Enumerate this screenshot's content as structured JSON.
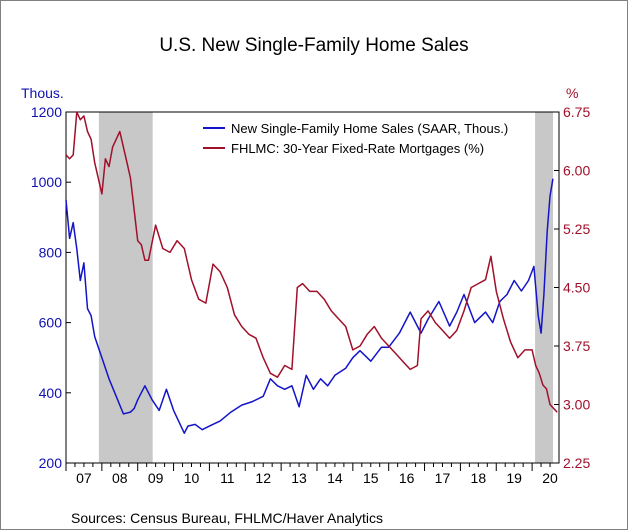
{
  "chart_data": {
    "type": "line",
    "title": "U.S. New Single-Family Home Sales",
    "source": "Sources:   Census Bureau, FHLMC/Haver Analytics",
    "left_axis": {
      "unit_label": "Thous.",
      "ticks": [
        200,
        400,
        600,
        800,
        1000,
        1200
      ],
      "tick_labels": [
        "200",
        "400",
        "600",
        "800",
        "1000",
        "1200"
      ],
      "range": [
        200,
        1200
      ],
      "color": "#1010b0"
    },
    "right_axis": {
      "unit_label": "%",
      "ticks": [
        2.25,
        3.0,
        3.75,
        4.5,
        5.25,
        6.0,
        6.75
      ],
      "tick_labels": [
        "2.25",
        "3.00",
        "3.75",
        "4.50",
        "5.25",
        "6.00",
        "6.75"
      ],
      "range": [
        2.25,
        6.75
      ],
      "color": "#a0102a"
    },
    "x_axis": {
      "tick_labels": [
        "07",
        "08",
        "09",
        "10",
        "11",
        "12",
        "13",
        "14",
        "15",
        "16",
        "17",
        "18",
        "19",
        "20"
      ],
      "range": [
        2007.0,
        2020.75
      ]
    },
    "recessions": [
      [
        2007.917,
        2009.417
      ],
      [
        2020.083,
        2020.583
      ]
    ],
    "grid": false,
    "legend_position": "top-right",
    "series": [
      {
        "name": "New Single-Family Home Sales (SAAR, Thous.)",
        "axis": "left",
        "color": "#1414c8",
        "x": [
          2007.0,
          2007.1,
          2007.2,
          2007.3,
          2007.4,
          2007.5,
          2007.6,
          2007.7,
          2007.8,
          2007.9,
          2008.0,
          2008.2,
          2008.4,
          2008.6,
          2008.8,
          2008.9,
          2009.0,
          2009.2,
          2009.4,
          2009.6,
          2009.8,
          2010.0,
          2010.3,
          2010.4,
          2010.6,
          2010.8,
          2011.0,
          2011.3,
          2011.6,
          2011.9,
          2012.2,
          2012.5,
          2012.7,
          2012.9,
          2013.1,
          2013.3,
          2013.5,
          2013.7,
          2013.9,
          2014.1,
          2014.3,
          2014.5,
          2014.8,
          2015.0,
          2015.2,
          2015.5,
          2015.8,
          2016.0,
          2016.3,
          2016.6,
          2016.9,
          2017.1,
          2017.4,
          2017.7,
          2017.9,
          2018.1,
          2018.4,
          2018.7,
          2018.9,
          2019.1,
          2019.3,
          2019.5,
          2019.7,
          2019.9,
          2020.05,
          2020.17,
          2020.25,
          2020.33,
          2020.42,
          2020.5,
          2020.58
        ],
        "values": [
          950,
          840,
          885,
          810,
          720,
          770,
          640,
          620,
          560,
          530,
          500,
          440,
          390,
          340,
          345,
          355,
          380,
          420,
          380,
          350,
          410,
          350,
          285,
          305,
          310,
          295,
          305,
          320,
          345,
          365,
          375,
          390,
          440,
          420,
          410,
          420,
          360,
          450,
          410,
          440,
          420,
          450,
          470,
          500,
          520,
          490,
          530,
          530,
          570,
          630,
          570,
          610,
          660,
          590,
          630,
          680,
          600,
          630,
          600,
          660,
          680,
          720,
          690,
          720,
          760,
          620,
          570,
          680,
          860,
          960,
          1010
        ]
      },
      {
        "name": "FHLMC: 30-Year Fixed-Rate Mortgages (%)",
        "axis": "right",
        "color": "#a0102a",
        "x": [
          2007.0,
          2007.1,
          2007.2,
          2007.3,
          2007.4,
          2007.5,
          2007.6,
          2007.7,
          2007.8,
          2007.9,
          2008.0,
          2008.1,
          2008.2,
          2008.3,
          2008.4,
          2008.5,
          2008.6,
          2008.7,
          2008.8,
          2008.9,
          2009.0,
          2009.1,
          2009.2,
          2009.3,
          2009.5,
          2009.7,
          2009.9,
          2010.1,
          2010.3,
          2010.5,
          2010.7,
          2010.9,
          2011.1,
          2011.3,
          2011.5,
          2011.7,
          2011.9,
          2012.1,
          2012.3,
          2012.5,
          2012.7,
          2012.9,
          2013.1,
          2013.3,
          2013.45,
          2013.6,
          2013.8,
          2014.0,
          2014.2,
          2014.4,
          2014.6,
          2014.8,
          2015.0,
          2015.2,
          2015.4,
          2015.6,
          2015.8,
          2016.0,
          2016.2,
          2016.4,
          2016.6,
          2016.8,
          2016.9,
          2017.1,
          2017.3,
          2017.5,
          2017.7,
          2017.9,
          2018.1,
          2018.3,
          2018.5,
          2018.7,
          2018.85,
          2019.0,
          2019.2,
          2019.4,
          2019.6,
          2019.8,
          2020.0,
          2020.1,
          2020.2,
          2020.3,
          2020.4,
          2020.5,
          2020.6,
          2020.7
        ],
        "values": [
          6.2,
          6.15,
          6.2,
          6.75,
          6.65,
          6.7,
          6.5,
          6.4,
          6.1,
          5.9,
          5.7,
          6.15,
          6.05,
          6.3,
          6.4,
          6.5,
          6.3,
          6.1,
          5.9,
          5.5,
          5.1,
          5.05,
          4.85,
          4.85,
          5.3,
          5.0,
          4.95,
          5.1,
          5.0,
          4.6,
          4.35,
          4.3,
          4.8,
          4.7,
          4.5,
          4.15,
          4.0,
          3.9,
          3.85,
          3.6,
          3.4,
          3.35,
          3.5,
          3.45,
          4.5,
          4.55,
          4.45,
          4.45,
          4.35,
          4.2,
          4.1,
          4.0,
          3.7,
          3.75,
          3.9,
          4.0,
          3.85,
          3.75,
          3.65,
          3.55,
          3.45,
          3.5,
          4.1,
          4.2,
          4.05,
          3.95,
          3.85,
          3.95,
          4.2,
          4.5,
          4.55,
          4.6,
          4.9,
          4.45,
          4.1,
          3.8,
          3.6,
          3.7,
          3.7,
          3.5,
          3.4,
          3.25,
          3.2,
          3.0,
          2.95,
          2.9
        ]
      }
    ]
  }
}
